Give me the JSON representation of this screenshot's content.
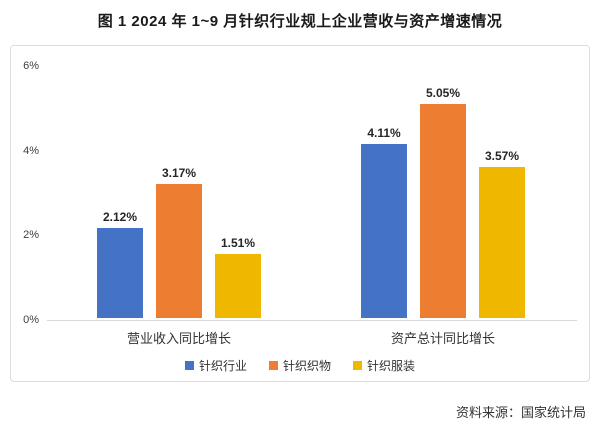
{
  "figure": {
    "title": "图 1  2024 年 1~9 月针织行业规上企业营收与资产增速情况",
    "source": "资料来源：国家统计局"
  },
  "chart_data": {
    "type": "bar",
    "title": "2024 年 1~9 月针织行业规上企业营收与资产增速情况",
    "categories": [
      "营业收入同比增长",
      "资产总计同比增长"
    ],
    "series": [
      {
        "name": "针织行业",
        "color": "#4472C4",
        "values": [
          2.12,
          4.11
        ],
        "labels": [
          "2.12%",
          "4.11%"
        ]
      },
      {
        "name": "针织织物",
        "color": "#ED7D31",
        "values": [
          3.17,
          5.05
        ],
        "labels": [
          "3.17%",
          "5.05%"
        ]
      },
      {
        "name": "针织服装",
        "color": "#EFB700",
        "values": [
          1.51,
          3.57
        ],
        "labels": [
          "1.51%",
          "3.57%"
        ]
      }
    ],
    "y_axis": {
      "unit": "%",
      "ylim": [
        0,
        6
      ],
      "ticks": [
        {
          "value": 0,
          "label": "0%"
        },
        {
          "value": 2,
          "label": "2%"
        },
        {
          "value": 4,
          "label": "4%"
        },
        {
          "value": 6,
          "label": "6%"
        }
      ]
    },
    "grid": false,
    "legend_position": "bottom"
  }
}
